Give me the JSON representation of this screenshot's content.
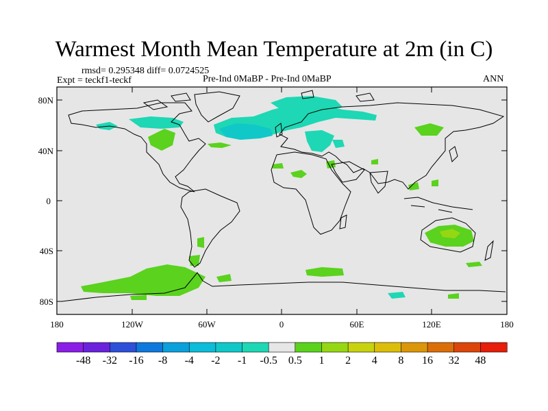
{
  "title": "Warmest Month Mean Temperature at 2m (in C)",
  "stats": "rmsd= 0.295348 diff= 0.0724525",
  "expt": "Expt = teckf1-teckf",
  "center_label": "Pre-Ind 0MaBP - Pre-Ind 0MaBP",
  "right_label": "ANN",
  "lat_ticks": [
    "80N",
    "40N",
    "0",
    "40S",
    "80S"
  ],
  "lon_ticks": [
    "180",
    "120W",
    "60W",
    "0",
    "60E",
    "120E",
    "180"
  ],
  "colorbar": {
    "labels": [
      "-48",
      "-32",
      "-16",
      "-8",
      "-4",
      "-2",
      "-1",
      "-0.5",
      "0.5",
      "1",
      "2",
      "4",
      "8",
      "16",
      "32",
      "48"
    ],
    "colors": [
      "#8a1ee6",
      "#6a22dc",
      "#2e4fd8",
      "#0f78dc",
      "#0aa0dc",
      "#0cbcd8",
      "#10c8c8",
      "#1ed7b4",
      "#e6e6e6",
      "#5ad21e",
      "#96d714",
      "#c8d20f",
      "#dcbe0a",
      "#dc960a",
      "#dc6e0a",
      "#dc460a",
      "#e61e0a"
    ]
  },
  "colors": {
    "background": "#e6e6e6",
    "coast": "#000000",
    "cyan": "#1ed7b4",
    "blue": "#10c8c8",
    "green": "#5ad21e",
    "lime": "#96d714"
  }
}
